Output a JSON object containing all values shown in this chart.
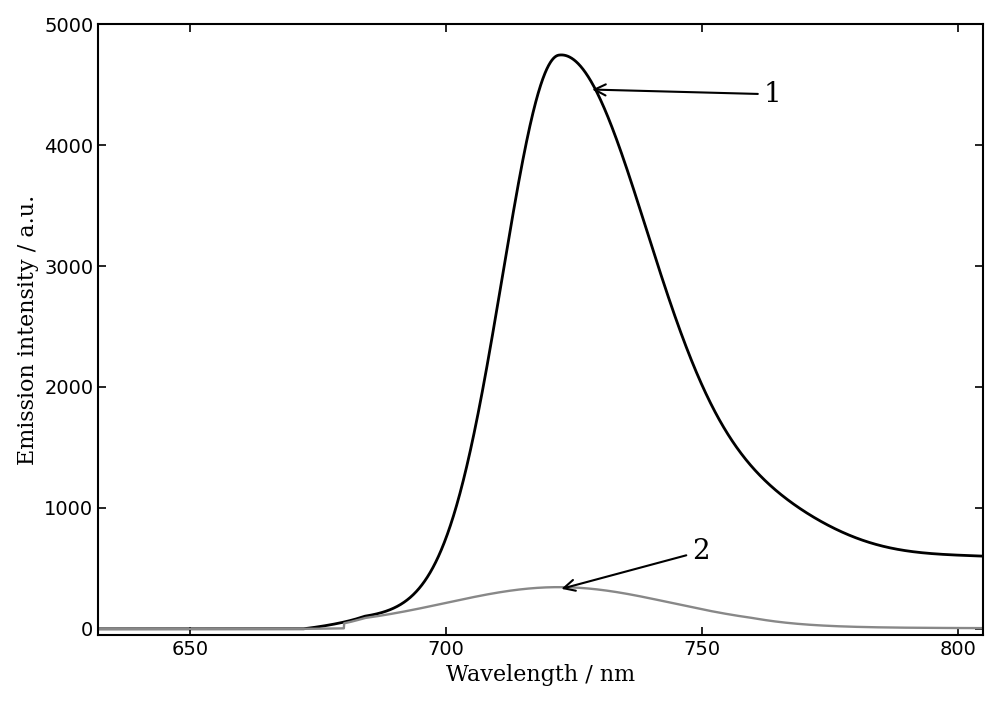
{
  "xlim": [
    632,
    805
  ],
  "ylim": [
    -50,
    5000
  ],
  "xticks": [
    650,
    700,
    750,
    800
  ],
  "yticks": [
    0,
    1000,
    2000,
    3000,
    4000,
    5000
  ],
  "xlabel": "Wavelength / nm",
  "ylabel": "Emission intensity / a.u.",
  "line1_color": "#000000",
  "line2_color": "#888888",
  "background_color": "#ffffff",
  "label1": "1",
  "label2": "2",
  "axis_fontsize": 16,
  "tick_fontsize": 14,
  "line_width": 2.0
}
